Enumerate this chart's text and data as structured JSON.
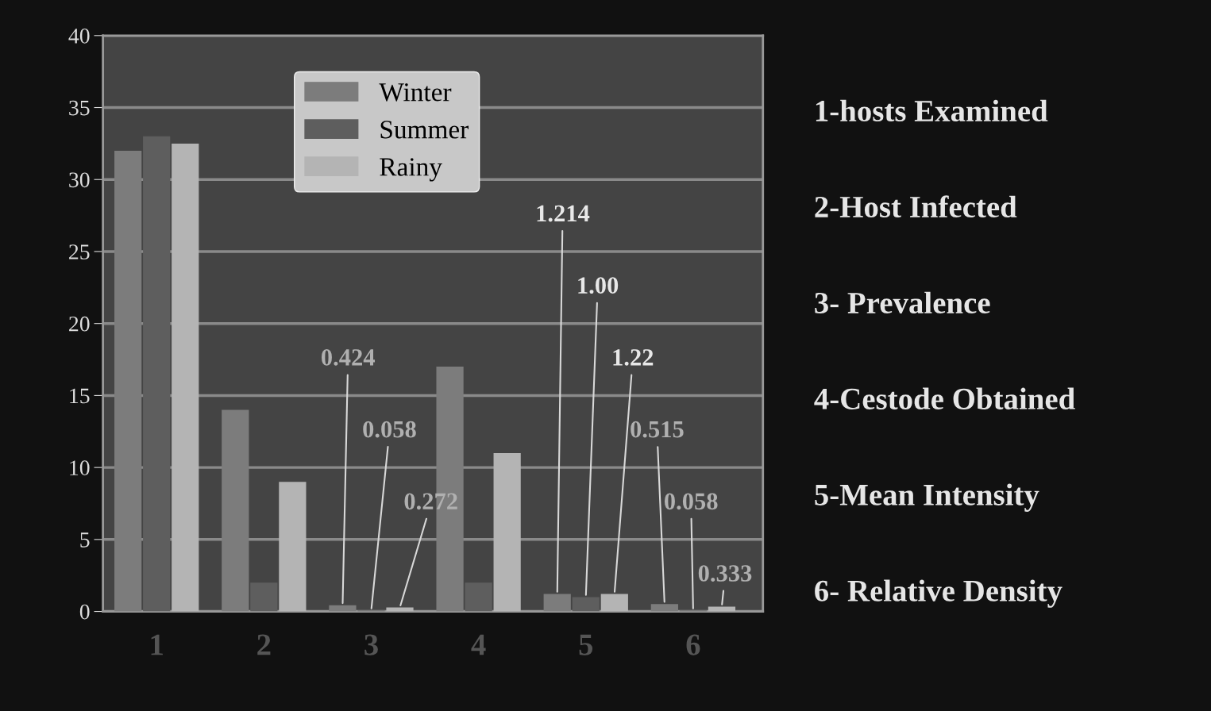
{
  "chart_data": {
    "type": "bar",
    "categories": [
      "1",
      "2",
      "3",
      "4",
      "5",
      "6"
    ],
    "series": [
      {
        "name": "Winter",
        "color": "#7c7c7c",
        "values": [
          32,
          14,
          0.424,
          17,
          1.214,
          0.515
        ],
        "value_labels": [
          null,
          null,
          "0.424",
          null,
          "1.214",
          "0.515"
        ]
      },
      {
        "name": "Summer",
        "color": "#5e5e5e",
        "values": [
          33,
          2,
          0.058,
          2,
          1.0,
          0.058
        ],
        "value_labels": [
          null,
          null,
          "0.058",
          null,
          "1.00",
          "0.058"
        ]
      },
      {
        "name": "Rainy",
        "color": "#b4b4b4",
        "values": [
          32.5,
          9,
          0.272,
          11,
          1.22,
          0.333
        ],
        "value_labels": [
          null,
          null,
          "0.272",
          null,
          "1.22",
          "0.333"
        ]
      }
    ],
    "ylim": [
      0,
      40
    ],
    "yticks": [
      0,
      5,
      10,
      15,
      20,
      25,
      30,
      35,
      40
    ],
    "grid": "y",
    "legend": "top left",
    "annotations": [
      "1-hosts Examined",
      "2-Host Infected",
      "3- Prevalence",
      "4-Cestode Obtained",
      "5-Mean Intensity",
      "6- Relative Density"
    ]
  }
}
